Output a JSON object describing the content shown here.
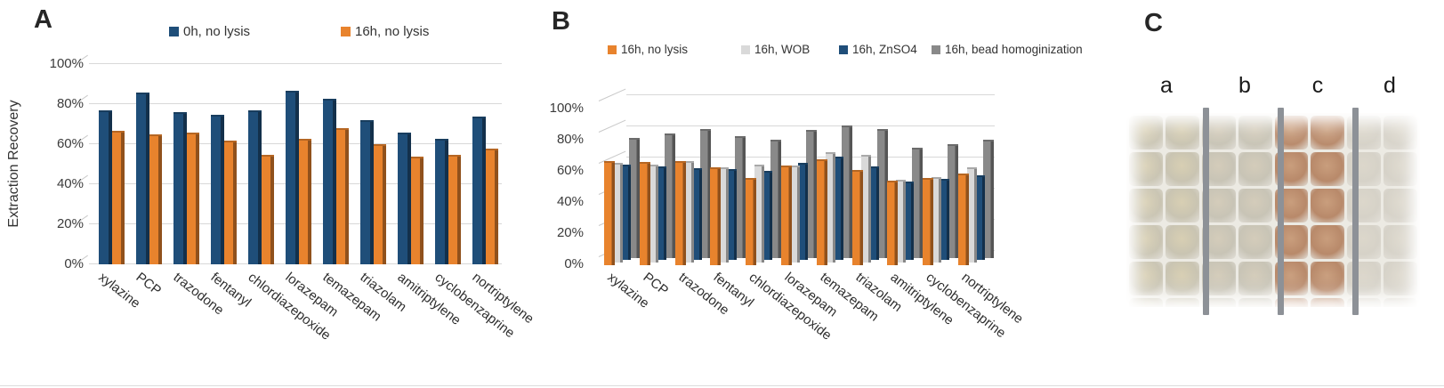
{
  "panels": {
    "a": {
      "label": "A"
    },
    "b": {
      "label": "B"
    },
    "c": {
      "label": "C",
      "column_labels": [
        "a",
        "b",
        "c",
        "d"
      ],
      "well_groups": {
        "a": {
          "base": "#c9c4b2",
          "blob": "#d8cfb3"
        },
        "b": {
          "base": "#c8c4b6",
          "blob": "#d4ccba"
        },
        "c": {
          "base": "#b8896a",
          "blob": "#c99e7d"
        },
        "d": {
          "base": "#d6d2c8",
          "blob": "#dcd7cb"
        }
      }
    }
  },
  "colors": {
    "gridline": "#d8d8d8",
    "axis_text": "#3b3b3b",
    "divider": "#8d9197",
    "bottom_rule": "#dcdcdc",
    "background": "#ffffff"
  },
  "chart_data": [
    {
      "panel": "A",
      "type": "bar",
      "title": "",
      "xlabel": "",
      "ylabel": "Extraction Recovery",
      "ylim": [
        0,
        100
      ],
      "ytick_values": [
        0,
        20,
        40,
        60,
        80,
        100
      ],
      "ytick_labels": [
        "0%",
        "20%",
        "40%",
        "60%",
        "80%",
        "100%"
      ],
      "grid": true,
      "legend_position": "top",
      "categories": [
        "xylazine",
        "PCP",
        "trazodone",
        "fentanyl",
        "chlordiazepoxide",
        "lorazepam",
        "temazepam",
        "triazolam",
        "amitriptylene",
        "cyclobenzaprine",
        "nortriptylene"
      ],
      "series": [
        {
          "name": "0h, no lysis",
          "color": "#1f4e79",
          "values": [
            76,
            85,
            75,
            74,
            76,
            86,
            82,
            71,
            65,
            62,
            73
          ]
        },
        {
          "name": "16h, no lysis",
          "color": "#e8832d",
          "values": [
            66,
            64,
            65,
            61,
            54,
            62,
            67,
            59,
            53,
            54,
            57
          ]
        }
      ]
    },
    {
      "panel": "B",
      "type": "bar",
      "title": "",
      "xlabel": "",
      "ylabel": "",
      "ylim": [
        0,
        100
      ],
      "ytick_values": [
        0,
        20,
        40,
        60,
        80,
        100
      ],
      "ytick_labels": [
        "0%",
        "20%",
        "40%",
        "60%",
        "80%",
        "100%"
      ],
      "grid": true,
      "legend_position": "top",
      "categories": [
        "xylazine",
        "PCP",
        "trazodone",
        "fentanyl",
        "chlordiazepoxide",
        "lorazepam",
        "temazepam",
        "triazolam",
        "amitriptylene",
        "cyclobenzaprine",
        "nortriptylene"
      ],
      "series": [
        {
          "name": "16h, no lysis",
          "color": "#e8832d",
          "values": [
            66,
            65,
            66,
            62,
            55,
            63,
            67,
            60,
            53,
            55,
            58
          ]
        },
        {
          "name": "16h, WOB",
          "color": "#d9d9d9",
          "values": [
            63,
            62,
            64,
            60,
            62,
            61,
            70,
            68,
            52,
            54,
            60
          ]
        },
        {
          "name": "16h, ZnSO4",
          "color": "#1f4e79",
          "values": [
            60,
            59,
            58,
            57,
            56,
            61,
            65,
            59,
            49,
            51,
            53
          ]
        },
        {
          "name": "16h, bead homoginization",
          "color": "#898989",
          "values": [
            76,
            79,
            82,
            77,
            75,
            81,
            84,
            82,
            70,
            72,
            75
          ]
        }
      ]
    }
  ]
}
